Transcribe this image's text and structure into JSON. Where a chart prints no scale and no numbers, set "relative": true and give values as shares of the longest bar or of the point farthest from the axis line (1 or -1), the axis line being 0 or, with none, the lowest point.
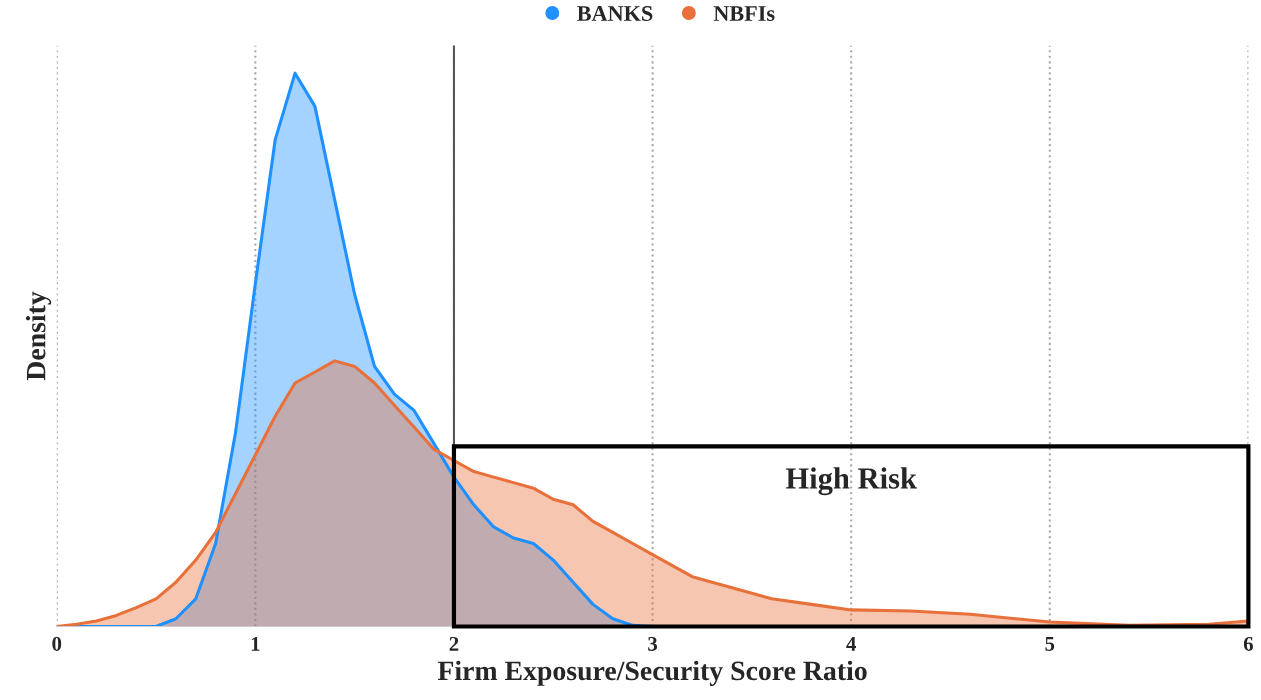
{
  "chart_data": {
    "type": "area",
    "relative": true,
    "xlabel": "Firm Exposure/Security Score Ratio",
    "ylabel": "Density",
    "xlim": [
      0,
      6
    ],
    "xticks": [
      0,
      1,
      2,
      3,
      4,
      5,
      6
    ],
    "grid": "x",
    "legend": "top",
    "marker": "none",
    "series": [
      {
        "name": "BANKS",
        "color": "#1e90ff",
        "x": [
          0,
          0.5,
          0.6,
          0.7,
          0.8,
          0.9,
          1.0,
          1.1,
          1.2,
          1.3,
          1.4,
          1.5,
          1.6,
          1.7,
          1.8,
          1.9,
          2.0,
          2.1,
          2.2,
          2.3,
          2.4,
          2.5,
          2.6,
          2.7,
          2.8,
          2.9,
          3.0,
          4.0,
          5.0,
          6.0
        ],
        "values": [
          0,
          0,
          0.014,
          0.05,
          0.15,
          0.35,
          0.62,
          0.88,
          1.0,
          0.94,
          0.77,
          0.6,
          0.47,
          0.42,
          0.39,
          0.33,
          0.27,
          0.22,
          0.18,
          0.16,
          0.15,
          0.12,
          0.08,
          0.04,
          0.014,
          0.002,
          0,
          0,
          0,
          0
        ]
      },
      {
        "name": "NBFIs",
        "color": "#e8703a",
        "x": [
          0,
          0.1,
          0.2,
          0.3,
          0.4,
          0.5,
          0.6,
          0.7,
          0.8,
          0.9,
          1.0,
          1.1,
          1.2,
          1.3,
          1.4,
          1.5,
          1.6,
          1.7,
          1.8,
          1.9,
          2.0,
          2.1,
          2.2,
          2.3,
          2.4,
          2.5,
          2.6,
          2.7,
          2.8,
          2.9,
          3.0,
          3.2,
          3.4,
          3.6,
          3.8,
          4.0,
          4.3,
          4.6,
          5.0,
          5.4,
          5.8,
          6.0
        ],
        "values": [
          0,
          0.004,
          0.01,
          0.02,
          0.034,
          0.05,
          0.08,
          0.12,
          0.17,
          0.24,
          0.31,
          0.38,
          0.44,
          0.46,
          0.48,
          0.47,
          0.44,
          0.4,
          0.36,
          0.32,
          0.3,
          0.28,
          0.27,
          0.26,
          0.25,
          0.23,
          0.22,
          0.19,
          0.17,
          0.15,
          0.13,
          0.09,
          0.07,
          0.05,
          0.04,
          0.03,
          0.028,
          0.022,
          0.008,
          0.002,
          0.004,
          0.01
        ]
      }
    ],
    "ref_lines": [
      {
        "axis": "x",
        "value": 2,
        "color": "#555555",
        "line_style": "solid"
      }
    ],
    "annotations": [
      "High Risk"
    ]
  }
}
